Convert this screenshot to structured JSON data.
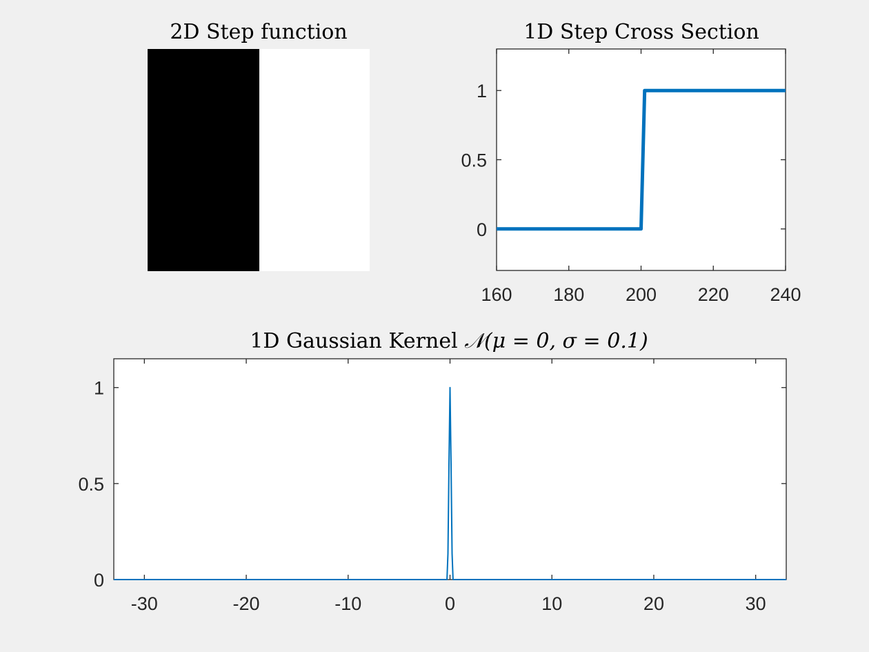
{
  "chart_data": [
    {
      "type": "heatmap",
      "title": "2D Step function",
      "cells": [
        [
          0,
          1
        ]
      ],
      "colormap": {
        "low": "#000000",
        "high": "#ffffff"
      }
    },
    {
      "type": "line",
      "title": "1D Step Cross Section",
      "x": [
        160,
        200,
        201,
        240
      ],
      "y": [
        0,
        0,
        1,
        1
      ],
      "xlim": [
        160,
        240
      ],
      "ylim": [
        -0.3,
        1.3
      ],
      "xticks": [
        160,
        180,
        200,
        220,
        240
      ],
      "xtick_labels": [
        "160",
        "180",
        "200",
        "220",
        "240"
      ],
      "yticks": [
        0,
        0.5,
        1
      ],
      "ytick_labels": [
        "0",
        "0.5",
        "1"
      ],
      "color": "#0072BD",
      "grid": false
    },
    {
      "type": "line",
      "title_text": "1D Gaussian Kernel ",
      "title_math": "𝒩(μ = 0, σ = 0.1)",
      "x": [
        -33,
        -0.5,
        -0.3,
        -0.2,
        -0.1,
        0,
        0.1,
        0.2,
        0.3,
        0.5,
        33
      ],
      "y": [
        0,
        0,
        0,
        0.135,
        0.6,
        1,
        0.6,
        0.135,
        0,
        0,
        0
      ],
      "xlim": [
        -33,
        33
      ],
      "ylim": [
        0,
        1.15
      ],
      "xticks": [
        -30,
        -20,
        -10,
        0,
        10,
        20,
        30
      ],
      "xtick_labels": [
        "-30",
        "-20",
        "-10",
        "0",
        "10",
        "20",
        "30"
      ],
      "yticks": [
        0,
        0.5,
        1
      ],
      "ytick_labels": [
        "0",
        "0.5",
        "1"
      ],
      "color": "#0072BD",
      "grid": false
    }
  ]
}
